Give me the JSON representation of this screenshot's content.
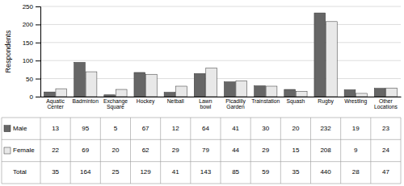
{
  "chart_data": {
    "type": "bar",
    "categories": [
      "Aquatic\nCenter",
      "Badminton",
      "Exchange\nSquare",
      "Hockey",
      "Netball",
      "Lawn\nbowl",
      "Picadilly\nGarden",
      "Trainstation",
      "Squash",
      "Rugby",
      "Wrestling",
      "Other\nLocations"
    ],
    "series": [
      {
        "name": "Male",
        "color": "#666666",
        "values": [
          13,
          95,
          5,
          67,
          12,
          64,
          41,
          30,
          20,
          232,
          19,
          23
        ]
      },
      {
        "name": "Female",
        "color": "#e8e8e8",
        "values": [
          22,
          69,
          20,
          62,
          29,
          79,
          44,
          29,
          15,
          208,
          9,
          24
        ]
      }
    ],
    "total": {
      "name": "Total",
      "values": [
        35,
        164,
        25,
        129,
        41,
        143,
        85,
        59,
        35,
        440,
        28,
        47
      ]
    },
    "ylabel": "Respondents",
    "ylim": [
      0,
      250
    ],
    "yticks": [
      0,
      50,
      100,
      150,
      200,
      250
    ],
    "grid": true
  }
}
